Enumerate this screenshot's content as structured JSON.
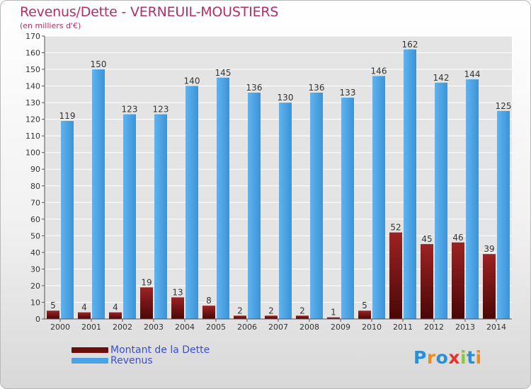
{
  "title": "Revenus/Dette - VERNEUIL-MOUSTIERS",
  "subtitle": "(en milliers d'€)",
  "brand": "Proxiti",
  "colors": {
    "dette": "#6b0e0e",
    "revenus": "#4ba3e3",
    "title": "#b0306a",
    "legend_text": "#3a4fd0"
  },
  "chart_data": {
    "type": "bar",
    "title": "Revenus/Dette - VERNEUIL-MOUSTIERS",
    "ylabel": "(en milliers d'€)",
    "xlabel": "",
    "ylim": [
      0,
      170
    ],
    "yticks": [
      0,
      10,
      20,
      30,
      40,
      50,
      60,
      70,
      80,
      90,
      100,
      110,
      120,
      130,
      140,
      150,
      160,
      170
    ],
    "grid": true,
    "legend": "bottom-left",
    "categories": [
      "2000",
      "2001",
      "2002",
      "2003",
      "2004",
      "2005",
      "2006",
      "2007",
      "2008",
      "2009",
      "2010",
      "2011",
      "2012",
      "2013",
      "2014"
    ],
    "series": [
      {
        "name": "Montant de la Dette",
        "values": [
          5,
          4,
          4,
          19,
          13,
          8,
          2,
          2,
          2,
          1,
          5,
          52,
          45,
          46,
          39
        ]
      },
      {
        "name": "Revenus",
        "values": [
          119,
          150,
          123,
          123,
          140,
          145,
          136,
          130,
          136,
          133,
          146,
          162,
          142,
          144,
          125
        ]
      }
    ]
  }
}
